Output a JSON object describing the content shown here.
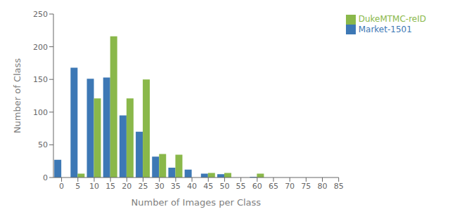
{
  "chart_data": {
    "type": "bar",
    "x": [
      0,
      5,
      10,
      15,
      20,
      25,
      30,
      35,
      40,
      45,
      50,
      55,
      60,
      65,
      70,
      75,
      80
    ],
    "series": [
      {
        "name": "Market-1501",
        "color": "#3d78b5",
        "values": [
          27,
          168,
          151,
          153,
          95,
          70,
          32,
          15,
          12,
          6,
          5,
          0,
          1,
          0,
          0,
          0,
          0
        ]
      },
      {
        "name": "DukeMTMC-reID",
        "color": "#8ab84a",
        "values": [
          0,
          6,
          121,
          216,
          121,
          150,
          36,
          35,
          0,
          7,
          7,
          0,
          6,
          0,
          0,
          0,
          0
        ]
      }
    ],
    "xlabel": "Number of Images per Class",
    "ylabel": "Number of Class",
    "xlim": [
      -2.5,
      85
    ],
    "ylim": [
      0,
      250
    ],
    "xticks": [
      0,
      5,
      10,
      15,
      20,
      25,
      30,
      35,
      40,
      45,
      50,
      55,
      60,
      65,
      70,
      75,
      80,
      85
    ],
    "yticks": [
      0,
      50,
      100,
      150,
      200,
      250
    ],
    "grid": false,
    "legend": "upper right"
  }
}
